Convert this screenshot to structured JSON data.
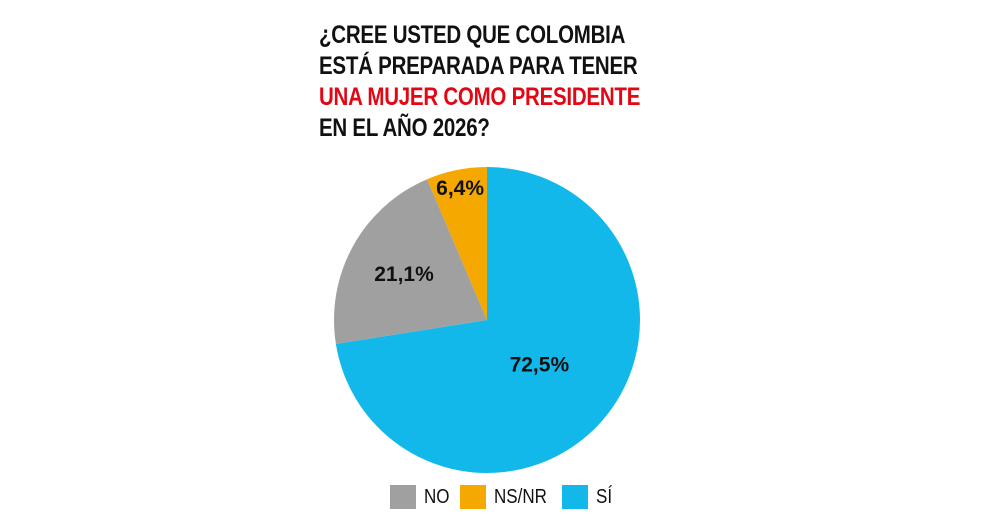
{
  "title": {
    "line1": "¿CREE USTED QUE COLOMBIA",
    "line2": "ESTÁ PREPARADA PARA TENER",
    "line3": "UNA MUJER COMO PRESIDENTE",
    "line4": "EN EL AÑO 2026?"
  },
  "colors": {
    "title_highlight": "#e30613",
    "NO": "#a0a0a0",
    "NS/NR": "#f5a800",
    "SÍ": "#12b8ea"
  },
  "chart_data": {
    "type": "pie",
    "title": "¿CREE USTED QUE COLOMBIA ESTÁ PREPARADA PARA TENER UNA MUJER COMO PRESIDENTE EN EL AÑO 2026?",
    "legend_position": "bottom",
    "slices": [
      {
        "label": "SÍ",
        "value": 72.5,
        "data_label": "72,5%",
        "color": "#12b8ea"
      },
      {
        "label": "NO",
        "value": 21.1,
        "data_label": "21,1%",
        "color": "#a0a0a0"
      },
      {
        "label": "NS/NR",
        "value": 6.4,
        "data_label": "6,4%",
        "color": "#f5a800"
      }
    ],
    "legend": [
      "NO",
      "NS/NR",
      "SÍ"
    ]
  }
}
